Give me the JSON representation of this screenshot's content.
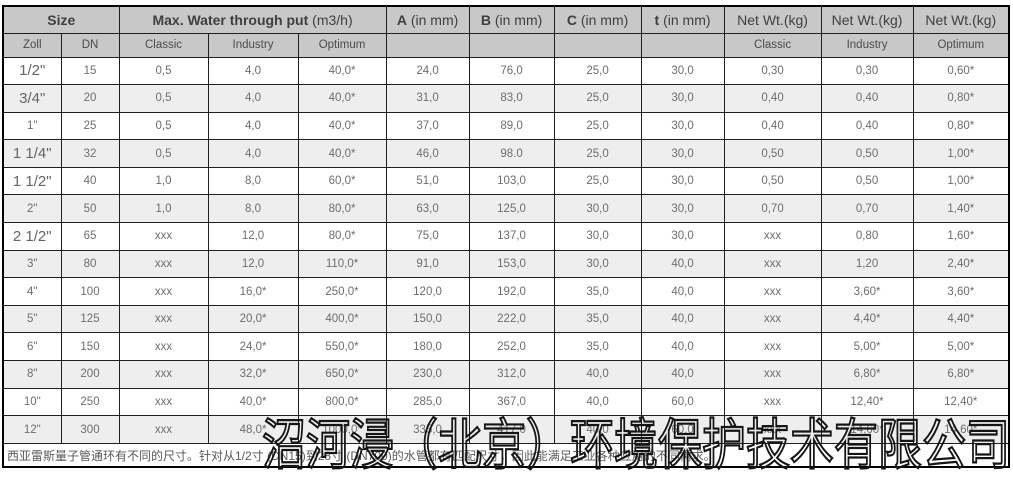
{
  "header": {
    "size_label": "Size",
    "max_water": {
      "bold": "Max. Water through put",
      "unit": "(m3/h)"
    },
    "dims": [
      {
        "bold": "A",
        "unit": "(in mm)"
      },
      {
        "bold": "B",
        "unit": "(in mm)"
      },
      {
        "bold": "C",
        "unit": "(in mm)"
      },
      {
        "bold": "t",
        "unit": "(in mm)"
      }
    ],
    "net_wt_label": "Net Wt.(kg)",
    "sub": {
      "zoll": "Zoll",
      "dn": "DN",
      "classic": "Classic",
      "industry": "Industry",
      "optimum": "Optimum"
    }
  },
  "rows": [
    [
      "1/2\"",
      "15",
      "0,5",
      "4,0",
      "40,0*",
      "24,0",
      "76,0",
      "25,0",
      "30,0",
      "0,30",
      "0,30",
      "0,60*"
    ],
    [
      "3/4\"",
      "20",
      "0,5",
      "4,0",
      "40,0*",
      "31,0",
      "83,0",
      "25,0",
      "30,0",
      "0,40",
      "0,40",
      "0,80*"
    ],
    [
      "1\"",
      "25",
      "0,5",
      "4,0",
      "40,0*",
      "37,0",
      "89,0",
      "25,0",
      "30,0",
      "0,40",
      "0,40",
      "0,80*"
    ],
    [
      "1 1/4\"",
      "32",
      "0,5",
      "4,0",
      "40,0*",
      "46,0",
      "98.0",
      "25,0",
      "30,0",
      "0,50",
      "0,50",
      "1,00*"
    ],
    [
      "1 1/2\"",
      "40",
      "1,0",
      "8,0",
      "60,0*",
      "51,0",
      "103,0",
      "25,0",
      "30,0",
      "0,50",
      "0,50",
      "1,00*"
    ],
    [
      "2\"",
      "50",
      "1,0",
      "8,0",
      "80,0*",
      "63,0",
      "125,0",
      "30,0",
      "30,0",
      "0,70",
      "0,70",
      "1,40*"
    ],
    [
      "2 1/2\"",
      "65",
      "xxx",
      "12,0",
      "80,0*",
      "75,0",
      "137,0",
      "30,0",
      "30,0",
      "xxx",
      "0,80",
      "1,60*"
    ],
    [
      "3\"",
      "80",
      "xxx",
      "12,0",
      "110,0*",
      "91,0",
      "153,0",
      "30,0",
      "40,0",
      "xxx",
      "1,20",
      "2,40*"
    ],
    [
      "4\"",
      "100",
      "xxx",
      "16,0*",
      "250,0*",
      "120,0",
      "192,0",
      "35,0",
      "40,0",
      "xxx",
      "3,60*",
      "3,60*"
    ],
    [
      "5\"",
      "125",
      "xxx",
      "20,0*",
      "400,0*",
      "150,0",
      "222,0",
      "35,0",
      "40,0",
      "xxx",
      "4,40*",
      "4,40*"
    ],
    [
      "6\"",
      "150",
      "xxx",
      "24,0*",
      "550,0*",
      "180,0",
      "252,0",
      "35,0",
      "40,0",
      "xxx",
      "5,00*",
      "5,00*"
    ],
    [
      "8\"",
      "200",
      "xxx",
      "32,0*",
      "650,0*",
      "230,0",
      "312,0",
      "40,0",
      "40,0",
      "xxx",
      "6,80*",
      "6,80*"
    ],
    [
      "10\"",
      "250",
      "xxx",
      "40,0*",
      "800,0*",
      "285,0",
      "367,0",
      "40,0",
      "60,0",
      "xxx",
      "12,40*",
      "12,40*"
    ],
    [
      "12\"",
      "300",
      "xxx",
      "48,0*",
      "1000,0*",
      "335,0",
      "417,0",
      "40,0",
      "60,0",
      "xxx",
      "14,60*",
      "14,60*"
    ]
  ],
  "footnote": "西亚雷斯量子管通环有不同的尺寸。针对从1/2寸 (DN15)到28寸 (DN700)的水管都有匹配尺寸，因此能满足工业各种应用的不同需求。",
  "watermark": "沼河浸（北京）环境保护技术有限公司",
  "colors": {
    "header_bg": "#c8c8c8",
    "stripe_bg": "#eeeeee",
    "border": "#1f1f1f",
    "text": "#6e6e6e",
    "header_text": "#3f3f3f",
    "watermark_stroke": "#151515"
  }
}
